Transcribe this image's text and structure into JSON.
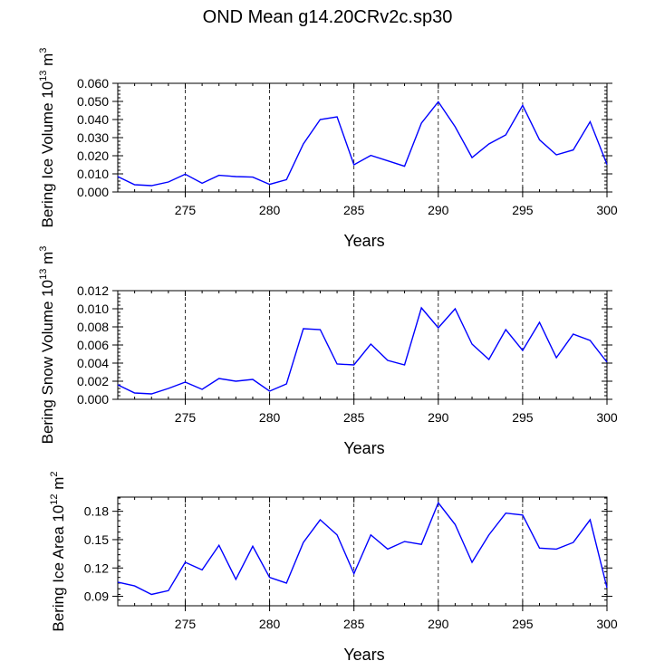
{
  "figure_title": "OND Mean g14.20CRv2c.sp30",
  "colors": {
    "line": "#0000ff",
    "axis": "#000000",
    "grid": "#000000"
  },
  "chart_data": [
    {
      "type": "line",
      "title": "",
      "xlabel": "Years",
      "ylabel_main": "Bering Ice Volume 10",
      "ylabel_exp": "13",
      "ylabel_unit": "m",
      "ylabel_unit_exp": "3",
      "xlim": [
        271,
        300
      ],
      "ylim": [
        0,
        0.06
      ],
      "x_ticks": [
        275,
        280,
        285,
        290,
        295,
        300
      ],
      "y_ticks": [
        0.0,
        0.01,
        0.02,
        0.03,
        0.04,
        0.05,
        0.06
      ],
      "y_tick_labels": [
        "0.000",
        "0.010",
        "0.020",
        "0.030",
        "0.040",
        "0.050",
        "0.060"
      ],
      "vgrid": [
        275,
        280,
        285,
        290,
        295
      ],
      "x": [
        271,
        272,
        273,
        274,
        275,
        276,
        277,
        278,
        279,
        280,
        281,
        282,
        283,
        284,
        285,
        286,
        287,
        288,
        289,
        290,
        291,
        292,
        293,
        294,
        295,
        296,
        297,
        298,
        299,
        300
      ],
      "values": [
        0.0085,
        0.004,
        0.0035,
        0.0055,
        0.0098,
        0.0048,
        0.0092,
        0.0085,
        0.0082,
        0.0042,
        0.0068,
        0.0265,
        0.04,
        0.0415,
        0.015,
        0.0202,
        0.0172,
        0.0142,
        0.038,
        0.0498,
        0.036,
        0.019,
        0.0265,
        0.0315,
        0.0478,
        0.0288,
        0.0205,
        0.0232,
        0.0388,
        0.0152
      ]
    },
    {
      "type": "line",
      "title": "",
      "xlabel": "Years",
      "ylabel_main": "Bering Snow Volume 10",
      "ylabel_exp": "13",
      "ylabel_unit": "m",
      "ylabel_unit_exp": "3",
      "xlim": [
        271,
        300
      ],
      "ylim": [
        0,
        0.012
      ],
      "x_ticks": [
        275,
        280,
        285,
        290,
        295,
        300
      ],
      "y_ticks": [
        0.0,
        0.002,
        0.004,
        0.006,
        0.008,
        0.01,
        0.012
      ],
      "y_tick_labels": [
        "0.000",
        "0.002",
        "0.004",
        "0.006",
        "0.008",
        "0.010",
        "0.012"
      ],
      "vgrid": [
        275,
        280,
        285,
        290,
        295
      ],
      "x": [
        271,
        272,
        273,
        274,
        275,
        276,
        277,
        278,
        279,
        280,
        281,
        282,
        283,
        284,
        285,
        286,
        287,
        288,
        289,
        290,
        291,
        292,
        293,
        294,
        295,
        296,
        297,
        298,
        299,
        300
      ],
      "values": [
        0.0016,
        0.0007,
        0.0006,
        0.0012,
        0.0019,
        0.0011,
        0.0023,
        0.002,
        0.0022,
        0.0009,
        0.0017,
        0.0078,
        0.0077,
        0.0039,
        0.0038,
        0.0061,
        0.0043,
        0.0038,
        0.0101,
        0.0079,
        0.01,
        0.0061,
        0.0044,
        0.0077,
        0.0054,
        0.0085,
        0.0046,
        0.0072,
        0.0065,
        0.0041
      ]
    },
    {
      "type": "line",
      "title": "",
      "xlabel": "Years",
      "ylabel_main": "Bering Ice Area 10",
      "ylabel_exp": "12",
      "ylabel_unit": "m",
      "ylabel_unit_exp": "2",
      "xlim": [
        271,
        300
      ],
      "ylim": [
        0.08,
        0.195
      ],
      "x_ticks": [
        275,
        280,
        285,
        290,
        295,
        300
      ],
      "y_ticks": [
        0.09,
        0.12,
        0.15,
        0.18
      ],
      "y_tick_labels": [
        "0.09",
        "0.12",
        "0.15",
        "0.18"
      ],
      "vgrid": [
        275,
        280,
        285,
        290,
        295
      ],
      "x": [
        271,
        272,
        273,
        274,
        275,
        276,
        277,
        278,
        279,
        280,
        281,
        282,
        283,
        284,
        285,
        286,
        287,
        288,
        289,
        290,
        291,
        292,
        293,
        294,
        295,
        296,
        297,
        298,
        299,
        300
      ],
      "values": [
        0.105,
        0.101,
        0.092,
        0.096,
        0.126,
        0.118,
        0.144,
        0.108,
        0.143,
        0.11,
        0.104,
        0.147,
        0.171,
        0.155,
        0.114,
        0.155,
        0.14,
        0.148,
        0.145,
        0.189,
        0.166,
        0.126,
        0.155,
        0.178,
        0.176,
        0.141,
        0.14,
        0.147,
        0.171,
        0.099
      ]
    }
  ]
}
